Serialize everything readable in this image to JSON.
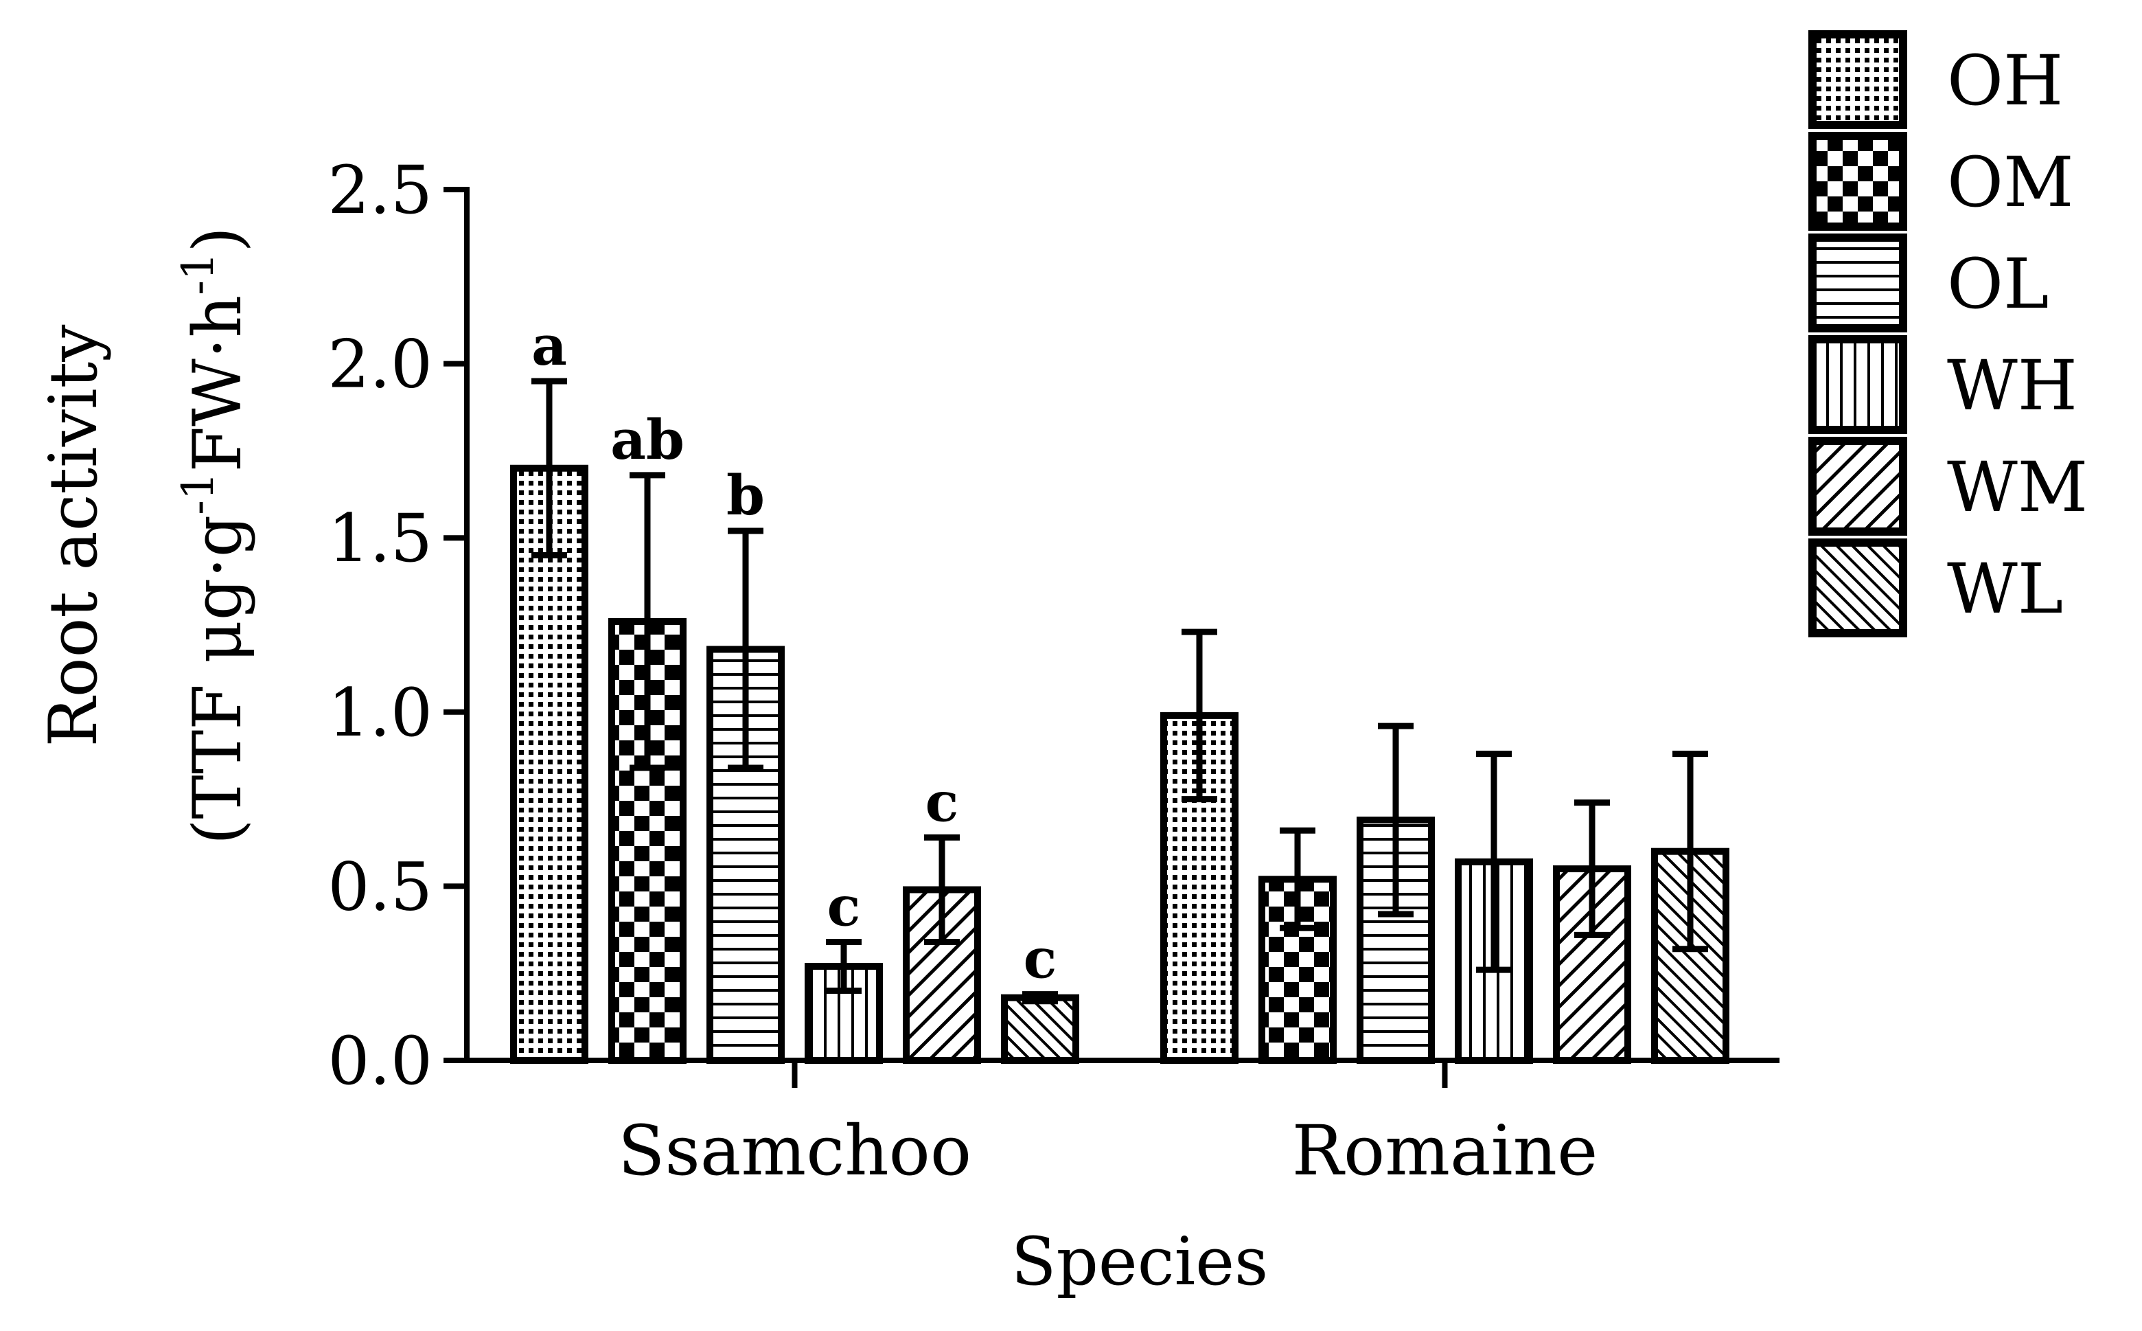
{
  "chart_data": {
    "type": "bar",
    "title": "",
    "xlabel": "Species",
    "ylabel_line1": "Root activity",
    "ylabel_line2_prefix": "(TTF μg·g",
    "ylabel_line2_sup1": "-1",
    "ylabel_line2_mid": "FW·h",
    "ylabel_line2_sup2": "-1",
    "ylabel_line2_suffix": ")",
    "ylim": [
      0,
      2.5
    ],
    "yticks": [
      "0.0",
      "0.5",
      "1.0",
      "1.5",
      "2.0",
      "2.5"
    ],
    "categories": [
      "Ssamchoo",
      "Romaine"
    ],
    "series": [
      {
        "name": "OH",
        "pattern": "dots",
        "values": [
          1.7,
          0.99
        ],
        "errors": [
          0.25,
          0.24
        ],
        "labels": [
          "a",
          ""
        ]
      },
      {
        "name": "OM",
        "pattern": "checker",
        "values": [
          1.26,
          0.52
        ],
        "errors": [
          0.42,
          0.14
        ],
        "labels": [
          "ab",
          ""
        ]
      },
      {
        "name": "OL",
        "pattern": "hlines",
        "values": [
          1.18,
          0.69
        ],
        "errors": [
          0.34,
          0.27
        ],
        "labels": [
          "b",
          ""
        ]
      },
      {
        "name": "WH",
        "pattern": "vlines",
        "values": [
          0.27,
          0.57
        ],
        "errors": [
          0.07,
          0.31
        ],
        "labels": [
          "c",
          ""
        ]
      },
      {
        "name": "WM",
        "pattern": "diag-fwd",
        "values": [
          0.49,
          0.55
        ],
        "errors": [
          0.15,
          0.19
        ],
        "labels": [
          "c",
          ""
        ]
      },
      {
        "name": "WL",
        "pattern": "diag-back",
        "values": [
          0.18,
          0.6
        ],
        "errors": [
          0.01,
          0.28
        ],
        "labels": [
          "c",
          ""
        ]
      }
    ],
    "legend_position": "top-right"
  }
}
